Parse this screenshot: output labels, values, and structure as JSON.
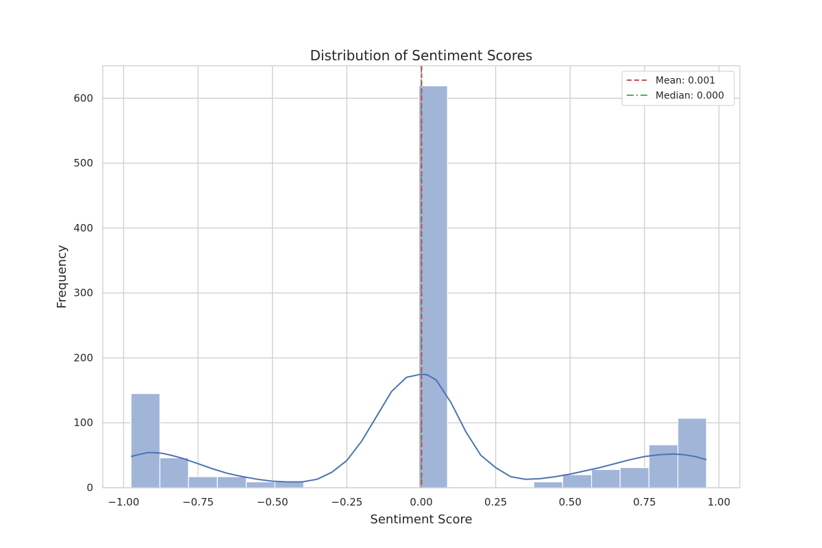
{
  "chart_data": {
    "type": "bar",
    "title": "Distribution of Sentiment Scores",
    "xlabel": "Sentiment Score",
    "ylabel": "Frequency",
    "xlim": [
      -1.07,
      1.07
    ],
    "ylim": [
      0,
      650
    ],
    "grid": true,
    "colors": {
      "bar": "#a1b5d8",
      "kde": "#4c72b0",
      "mean": "#c44e52",
      "median": "#55a868",
      "grid": "#cccccc",
      "axes": "#cccccc"
    },
    "xticks": [
      -1.0,
      -0.75,
      -0.5,
      -0.25,
      0.0,
      0.25,
      0.5,
      0.75,
      1.0
    ],
    "xtick_labels": [
      "−1.00",
      "−0.75",
      "−0.50",
      "−0.25",
      "0.00",
      "0.25",
      "0.50",
      "0.75",
      "1.00"
    ],
    "yticks": [
      0,
      100,
      200,
      300,
      400,
      500,
      600
    ],
    "ytick_labels": [
      "0",
      "100",
      "200",
      "300",
      "400",
      "500",
      "600"
    ],
    "bins": [
      {
        "x0": -0.975,
        "x1": -0.878,
        "count": 145
      },
      {
        "x0": -0.878,
        "x1": -0.782,
        "count": 46
      },
      {
        "x0": -0.782,
        "x1": -0.685,
        "count": 17
      },
      {
        "x0": -0.685,
        "x1": -0.588,
        "count": 17
      },
      {
        "x0": -0.588,
        "x1": -0.492,
        "count": 9
      },
      {
        "x0": -0.492,
        "x1": -0.395,
        "count": 9
      },
      {
        "x0": -0.008,
        "x1": 0.088,
        "count": 619
      },
      {
        "x0": 0.378,
        "x1": 0.475,
        "count": 9
      },
      {
        "x0": 0.475,
        "x1": 0.572,
        "count": 20
      },
      {
        "x0": 0.572,
        "x1": 0.668,
        "count": 28
      },
      {
        "x0": 0.668,
        "x1": 0.765,
        "count": 31
      },
      {
        "x0": 0.765,
        "x1": 0.862,
        "count": 66
      },
      {
        "x0": 0.862,
        "x1": 0.958,
        "count": 107
      }
    ],
    "kde": {
      "x": [
        -0.975,
        -0.95,
        -0.92,
        -0.9,
        -0.87,
        -0.84,
        -0.8,
        -0.75,
        -0.7,
        -0.65,
        -0.6,
        -0.55,
        -0.5,
        -0.45,
        -0.4,
        -0.35,
        -0.3,
        -0.25,
        -0.2,
        -0.15,
        -0.1,
        -0.05,
        0.0,
        0.02,
        0.05,
        0.1,
        0.15,
        0.2,
        0.25,
        0.3,
        0.35,
        0.4,
        0.45,
        0.5,
        0.55,
        0.6,
        0.65,
        0.7,
        0.75,
        0.8,
        0.85,
        0.88,
        0.92,
        0.958
      ],
      "y": [
        48,
        51,
        54,
        54,
        53,
        50,
        45,
        37,
        29,
        22,
        17,
        13,
        10,
        9,
        9,
        13,
        24,
        42,
        72,
        110,
        148,
        170,
        175,
        174,
        166,
        131,
        86,
        50,
        31,
        17,
        13,
        14,
        17,
        21,
        26,
        31,
        37,
        43,
        48,
        51,
        52,
        51,
        48,
        43
      ]
    },
    "mean": 0.001,
    "median": 0.0,
    "legend": {
      "position": "top-right",
      "entries": [
        {
          "label": "Mean: 0.001",
          "style": "dashed",
          "color": "#c44e52"
        },
        {
          "label": "Median: 0.000",
          "style": "dashdot",
          "color": "#55a868"
        }
      ]
    }
  }
}
